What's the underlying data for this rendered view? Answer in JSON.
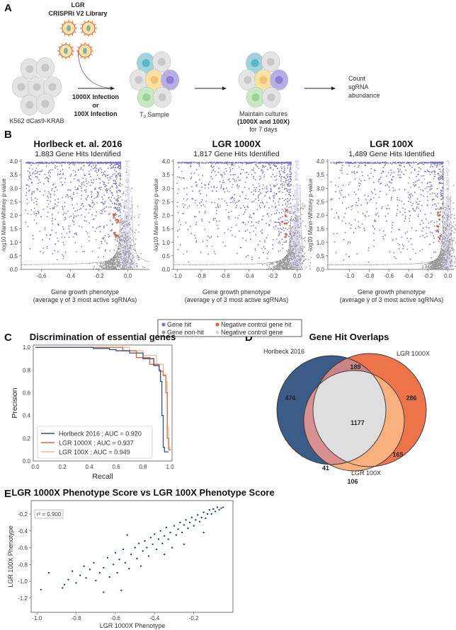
{
  "panel_labels": [
    "A",
    "B",
    "C",
    "D",
    "E"
  ],
  "panel_a": {
    "library": [
      "LGR",
      "CRISPRi V2 Library"
    ],
    "cell_line": "K562 dCas9-KRAB",
    "infection": [
      "1000X Infection",
      "or",
      "100X Infection"
    ],
    "t0": "T",
    "t0_sub": "0",
    "t0_rest": " Sample",
    "maintain": [
      "Maintain cultures",
      "(1000X and 100X)",
      "for 7 days"
    ],
    "count": [
      "Count",
      "sgRNA",
      "abundance"
    ]
  },
  "colors": {
    "gene_hit": "#7b74c4",
    "gene_non_hit": "#9a9a9a",
    "neg_ctrl_hit": "#e0642e",
    "neg_ctrl": "#d9d6ec",
    "horlbeck": "#2d5180",
    "lgr1000x": "#e8643a",
    "lgr100x": "#f7b58a",
    "scatter_e": "#1f4470"
  },
  "chart_data": [
    {
      "type": "scatter",
      "panel": "B1",
      "title": "Horlbeck et. al. 2016",
      "subtitle": "1,883 Gene Hits Identified",
      "xlabel": [
        "Gene growth phenotype",
        "(average γ of 3 most active sgRNAs)"
      ],
      "ylabel": "-log10 Mann-Whitney p-value",
      "xlim": [
        -0.74,
        0.15
      ],
      "ylim": [
        0,
        4.0
      ],
      "xticks": [
        "-0.6",
        "-0.4",
        "-0.2",
        "0.0"
      ],
      "xtick_values": [
        -0.6,
        -0.4,
        -0.2,
        0.0
      ],
      "yticks": [
        "0.0",
        "0.5",
        "1.0",
        "1.5",
        "2.0",
        "2.5",
        "3.0",
        "3.5",
        "4.0"
      ],
      "gene_hits": 1883
    },
    {
      "type": "scatter",
      "panel": "B2",
      "title": "LGR 1000X",
      "subtitle": "1,817 Gene Hits Identified",
      "xlabel": [
        "Gene growth phenotype",
        "(average γ of 3 most active sgRNAs)"
      ],
      "ylabel": "-log10 Mann-Whitney p-value",
      "xlim": [
        -1.03,
        0.05
      ],
      "ylim": [
        0,
        4.0
      ],
      "xticks": [
        "-1.0",
        "-0.8",
        "-0.6",
        "-0.4",
        "-0.2",
        "0.0"
      ],
      "xtick_values": [
        -1.0,
        -0.8,
        -0.6,
        -0.4,
        -0.2,
        0.0
      ],
      "yticks": [
        "0.0",
        "0.5",
        "1.0",
        "1.5",
        "2.0",
        "2.5",
        "3.0",
        "3.5",
        "4.0"
      ],
      "gene_hits": 1817
    },
    {
      "type": "scatter",
      "panel": "B3",
      "title": "LGR 100X",
      "subtitle": "1,489 Gene Hits Identified",
      "xlabel": [
        "Gene growth phenotype",
        "(average γ of 3 most active sgRNAs)"
      ],
      "ylabel": "-log10 Mann-Whitney p-value",
      "xlim": [
        -1.22,
        0.06
      ],
      "ylim": [
        0,
        4.0
      ],
      "xticks": [
        "-1.0",
        "-0.8",
        "-0.6",
        "-0.4",
        "-0.2",
        "0.0"
      ],
      "xtick_values": [
        -1.0,
        -0.8,
        -0.6,
        -0.4,
        -0.2,
        0.0
      ],
      "yticks": [
        "0.0",
        "0.5",
        "1.0",
        "1.5",
        "2.0",
        "2.5",
        "3.0",
        "3.5",
        "4.0"
      ],
      "gene_hits": 1489
    },
    {
      "type": "line",
      "panel": "C",
      "title": "Discrimination of essential genes",
      "xlabel": "Recall",
      "ylabel": "Precision",
      "xlim": [
        0,
        1.03
      ],
      "ylim": [
        0,
        1.02
      ],
      "xticks": [
        "0.0",
        "0.2",
        "0.4",
        "0.6",
        "0.8",
        "1.0"
      ],
      "yticks": [
        "0.0",
        "0.2",
        "0.4",
        "0.6",
        "0.8",
        "1.0"
      ],
      "legend_position": "lower-left",
      "series": [
        {
          "name": "Horlbeck 2016 ; AUC = 0.920",
          "color": "#2d5180",
          "points": [
            [
              0,
              1
            ],
            [
              0.42,
              1
            ],
            [
              0.43,
              0.99
            ],
            [
              0.55,
              0.98
            ],
            [
              0.6,
              0.97
            ],
            [
              0.7,
              0.95
            ],
            [
              0.8,
              0.9
            ],
            [
              0.88,
              0.84
            ],
            [
              0.92,
              0.8
            ],
            [
              0.93,
              0.7
            ],
            [
              0.94,
              0.4
            ],
            [
              0.95,
              0.12
            ],
            [
              0.96,
              0.08
            ],
            [
              0.99,
              0.08
            ]
          ]
        },
        {
          "name": "LGR 1000X ; AUC = 0.937",
          "color": "#e8643a",
          "points": [
            [
              0,
              1
            ],
            [
              0.55,
              1
            ],
            [
              0.65,
              0.97
            ],
            [
              0.75,
              0.91
            ],
            [
              0.85,
              0.85
            ],
            [
              0.92,
              0.79
            ],
            [
              0.95,
              0.75
            ],
            [
              0.97,
              0.6
            ],
            [
              0.98,
              0.2
            ],
            [
              0.99,
              0.1
            ],
            [
              1.0,
              0.09
            ]
          ]
        },
        {
          "name": "LGR 100X ; AUC = 0.949",
          "color": "#f7b58a",
          "points": [
            [
              0,
              1
            ],
            [
              0.6,
              1
            ],
            [
              0.7,
              0.97
            ],
            [
              0.8,
              0.93
            ],
            [
              0.9,
              0.85
            ],
            [
              0.95,
              0.76
            ],
            [
              0.97,
              0.7
            ],
            [
              0.98,
              0.3
            ],
            [
              0.99,
              0.12
            ],
            [
              1.0,
              0.1
            ]
          ]
        }
      ]
    },
    {
      "type": "venn",
      "panel": "D",
      "title": "Gene Hit Overlaps",
      "sets": [
        "Horlbeck 2016",
        "LGR 1000X",
        "LGR 100X"
      ],
      "regions": {
        "horlbeck_only": "476",
        "horlbeck_lgr1000x": "189",
        "lgr1000x_only": "286",
        "all_three": "1177",
        "lgr1000x_lgr100x": "165",
        "horlbeck_lgr100x": "41",
        "lgr100x_only": "106"
      }
    },
    {
      "type": "scatter",
      "panel": "E",
      "title": "LGR 1000X Phenotype Score vs LGR 100X Phenotype Score",
      "xlabel": "LGR 1000X Phenotype",
      "ylabel": "LGR 100X Phenotype",
      "annotation": "r² = 0.900",
      "xlim": [
        -1.03,
        0.0
      ],
      "ylim": [
        -1.37,
        -0.04
      ],
      "xticks": [
        "-1.0",
        "-0.8",
        "-0.6",
        "-0.4",
        "-0.2"
      ],
      "yticks": [
        "-1.2",
        "-1.0",
        "-0.8",
        "-0.6",
        "-0.4",
        "-0.2"
      ],
      "points": [
        [
          -0.98,
          -1.1
        ],
        [
          -0.94,
          -0.9
        ],
        [
          -0.87,
          -1.08
        ],
        [
          -0.86,
          -1.04
        ],
        [
          -0.84,
          -0.98
        ],
        [
          -0.82,
          -0.88
        ],
        [
          -0.8,
          -1.02
        ],
        [
          -0.78,
          -0.93
        ],
        [
          -0.76,
          -0.82
        ],
        [
          -0.75,
          -0.96
        ],
        [
          -0.73,
          -0.86
        ],
        [
          -0.71,
          -0.78
        ],
        [
          -0.7,
          -0.99
        ],
        [
          -0.68,
          -0.9
        ],
        [
          -0.66,
          -1.13
        ],
        [
          -0.66,
          -0.84
        ],
        [
          -0.64,
          -0.72
        ],
        [
          -0.63,
          -0.95
        ],
        [
          -0.61,
          -0.8
        ],
        [
          -0.6,
          -0.66
        ],
        [
          -0.59,
          -0.9
        ],
        [
          -0.58,
          -0.74
        ],
        [
          -0.57,
          -1.11
        ],
        [
          -0.56,
          -0.62
        ],
        [
          -0.55,
          -0.78
        ],
        [
          -0.54,
          -0.45
        ],
        [
          -0.53,
          -0.85
        ],
        [
          -0.52,
          -0.68
        ],
        [
          -0.5,
          -0.6
        ],
        [
          -0.49,
          -0.73
        ],
        [
          -0.48,
          -0.55
        ],
        [
          -0.47,
          -0.82
        ],
        [
          -0.46,
          -0.64
        ],
        [
          -0.45,
          -0.52
        ],
        [
          -0.44,
          -0.6
        ],
        [
          -0.43,
          -0.7
        ],
        [
          -0.42,
          -0.48
        ],
        [
          -0.41,
          -0.56
        ],
        [
          -0.4,
          -0.44
        ],
        [
          -0.39,
          -0.62
        ],
        [
          -0.38,
          -0.5
        ],
        [
          -0.37,
          -0.4
        ],
        [
          -0.36,
          -0.55
        ],
        [
          -0.35,
          -0.46
        ],
        [
          -0.34,
          -0.36
        ],
        [
          -0.33,
          -0.5
        ],
        [
          -0.32,
          -0.42
        ],
        [
          -0.31,
          -0.6
        ],
        [
          -0.3,
          -0.34
        ],
        [
          -0.29,
          -0.45
        ],
        [
          -0.28,
          -0.38
        ],
        [
          -0.27,
          -0.3
        ],
        [
          -0.26,
          -0.42
        ],
        [
          -0.25,
          -0.33
        ],
        [
          -0.24,
          -0.27
        ],
        [
          -0.23,
          -0.37
        ],
        [
          -0.22,
          -0.3
        ],
        [
          -0.21,
          -0.24
        ],
        [
          -0.2,
          -0.34
        ],
        [
          -0.19,
          -0.27
        ],
        [
          -0.18,
          -0.21
        ],
        [
          -0.17,
          -0.29
        ],
        [
          -0.16,
          -0.24
        ],
        [
          -0.15,
          -0.18
        ],
        [
          -0.14,
          -0.25
        ],
        [
          -0.13,
          -0.2
        ],
        [
          -0.12,
          -0.15
        ],
        [
          -0.11,
          -0.2
        ],
        [
          -0.1,
          -0.14
        ],
        [
          -0.09,
          -0.17
        ],
        [
          -0.08,
          -0.12
        ],
        [
          -0.07,
          -0.15
        ],
        [
          -0.06,
          -0.13
        ],
        [
          -0.05,
          -0.12
        ],
        [
          -0.15,
          -0.42
        ],
        [
          -0.25,
          -0.56
        ],
        [
          -0.35,
          -0.68
        ]
      ]
    }
  ],
  "legend_b": {
    "gene_hit": "Gene hit",
    "gene_non_hit": "Gene non-hit",
    "neg_ctrl_hit": "Negative control gene hit",
    "neg_ctrl": "Negative control gene"
  }
}
